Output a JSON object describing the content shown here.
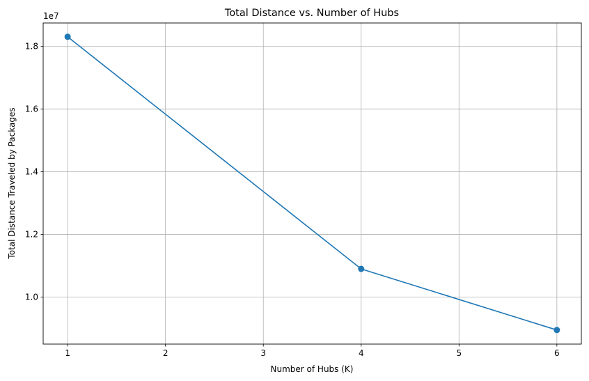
{
  "chart_data": {
    "type": "line",
    "title": "Total Distance vs. Number of Hubs",
    "xlabel": "Number of Hubs (K)",
    "ylabel": "Total Distance Traveled by Packages",
    "y_offset_label": "1e7",
    "xlim": [
      0.75,
      6.25
    ],
    "ylim": [
      8500000,
      18750000
    ],
    "x_ticks": [
      1,
      2,
      3,
      4,
      5,
      6
    ],
    "x_tick_labels": [
      "1",
      "2",
      "3",
      "4",
      "5",
      "6"
    ],
    "y_ticks": [
      10000000,
      12000000,
      14000000,
      16000000,
      18000000
    ],
    "y_tick_labels": [
      "1.0",
      "1.2",
      "1.4",
      "1.6",
      "1.8"
    ],
    "grid": true,
    "series": [
      {
        "x": [
          1,
          4,
          6
        ],
        "values": [
          18310000,
          10900000,
          8950000
        ],
        "color": "#1f77b4",
        "marker": "circle"
      }
    ]
  }
}
